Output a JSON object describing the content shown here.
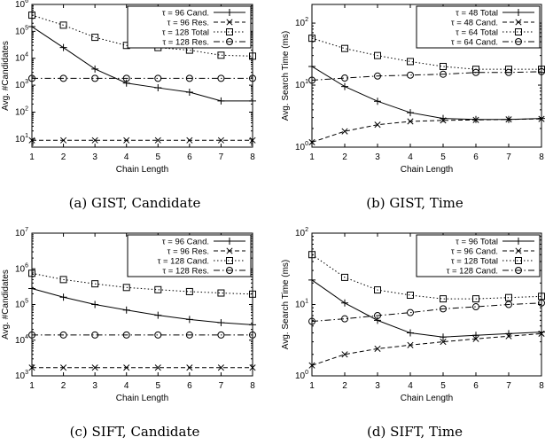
{
  "captions": [
    "(a) GIST, Candidate",
    "(b) GIST, Time",
    "(c) SIFT, Candidate",
    "(d) SIFT, Time"
  ],
  "chart_data": [
    {
      "type": "line",
      "xlabel": "Chain Length",
      "ylabel": "Avg. #Candidates",
      "yscale": "log",
      "ylim": [
        5,
        1000000
      ],
      "xlim": [
        1,
        8
      ],
      "x_ticks": [
        1,
        2,
        3,
        4,
        5,
        6,
        7,
        8
      ],
      "y_ticks": [
        10,
        100,
        1000,
        10000,
        100000,
        1000000
      ],
      "y_tick_labels": [
        "10^1",
        "10^2",
        "10^3",
        "10^4",
        "10^5",
        "10^6"
      ],
      "legend_position": "top-right",
      "x": [
        1,
        2,
        3,
        4,
        5,
        6,
        7,
        8
      ],
      "series": [
        {
          "name": "τ = 96 Cand.",
          "values": [
            150000,
            25000,
            4000,
            1200,
            800,
            550,
            260,
            260
          ],
          "marker": "plus",
          "dash": "solid"
        },
        {
          "name": "τ = 96 Res.",
          "values": [
            9,
            9,
            9,
            9,
            9,
            9,
            9,
            9
          ],
          "marker": "cross",
          "dash": "dashed"
        },
        {
          "name": "τ = 128 Total",
          "values": [
            400000,
            170000,
            60000,
            30000,
            25000,
            20000,
            13000,
            12000
          ],
          "marker": "square",
          "dash": "dotted"
        },
        {
          "name": "τ = 128 Res.",
          "values": [
            1800,
            1800,
            1800,
            1800,
            1800,
            1800,
            1800,
            1800
          ],
          "marker": "circle",
          "dash": "dashdot"
        }
      ]
    },
    {
      "type": "line",
      "xlabel": "Chain Length",
      "ylabel": "Avg. Search Time (ms)",
      "yscale": "log",
      "ylim": [
        1,
        200
      ],
      "xlim": [
        1,
        8
      ],
      "x_ticks": [
        1,
        2,
        3,
        4,
        5,
        6,
        7,
        8
      ],
      "y_ticks": [
        1,
        10,
        100
      ],
      "y_tick_labels": [
        "10^0",
        "10^1",
        "10^2"
      ],
      "legend_position": "top-right",
      "x": [
        1,
        2,
        3,
        4,
        5,
        6,
        7,
        8
      ],
      "series": [
        {
          "name": "τ = 48 Total",
          "values": [
            20,
            9.5,
            5.5,
            3.6,
            2.9,
            2.8,
            2.8,
            2.9
          ],
          "marker": "plus",
          "dash": "solid"
        },
        {
          "name": "τ = 48 Cand.",
          "values": [
            1.2,
            1.8,
            2.3,
            2.6,
            2.7,
            2.75,
            2.8,
            2.85
          ],
          "marker": "cross",
          "dash": "dashed"
        },
        {
          "name": "τ = 64 Total",
          "values": [
            57,
            39,
            30,
            24,
            20,
            18,
            18,
            18
          ],
          "marker": "square",
          "dash": "dotted"
        },
        {
          "name": "τ = 64 Cand.",
          "values": [
            12,
            13,
            14,
            14.5,
            15,
            16,
            16,
            16.5
          ],
          "marker": "circle",
          "dash": "dashdot"
        }
      ]
    },
    {
      "type": "line",
      "xlabel": "Chain Length",
      "ylabel": "Avg. #Candidates",
      "yscale": "log",
      "ylim": [
        1000,
        10000000
      ],
      "xlim": [
        1,
        8
      ],
      "x_ticks": [
        1,
        2,
        3,
        4,
        5,
        6,
        7,
        8
      ],
      "y_ticks": [
        1000,
        10000,
        100000,
        1000000,
        10000000
      ],
      "y_tick_labels": [
        "10^3",
        "10^4",
        "10^5",
        "10^6",
        "10^7"
      ],
      "legend_position": "top-right",
      "x": [
        1,
        2,
        3,
        4,
        5,
        6,
        7,
        8
      ],
      "series": [
        {
          "name": "τ = 96 Cand.",
          "values": [
            280000,
            160000,
            100000,
            70000,
            50000,
            38000,
            31000,
            27000
          ],
          "marker": "plus",
          "dash": "solid"
        },
        {
          "name": "τ = 96 Res.",
          "values": [
            1700,
            1700,
            1700,
            1700,
            1700,
            1700,
            1700,
            1700
          ],
          "marker": "cross",
          "dash": "dashed"
        },
        {
          "name": "τ = 128 Cand.",
          "values": [
            750000,
            500000,
            380000,
            300000,
            260000,
            230000,
            210000,
            195000
          ],
          "marker": "square",
          "dash": "dotted"
        },
        {
          "name": "τ = 128 Res.",
          "values": [
            14000,
            14000,
            14000,
            14000,
            14000,
            14000,
            14000,
            14000
          ],
          "marker": "circle",
          "dash": "dashdot"
        }
      ]
    },
    {
      "type": "line",
      "xlabel": "Chain Length",
      "ylabel": "Avg. Search Time (ms)",
      "yscale": "log",
      "ylim": [
        1,
        100
      ],
      "xlim": [
        1,
        8
      ],
      "x_ticks": [
        1,
        2,
        3,
        4,
        5,
        6,
        7,
        8
      ],
      "y_ticks": [
        1,
        10,
        100
      ],
      "y_tick_labels": [
        "10^0",
        "10^1",
        "10^2"
      ],
      "legend_position": "top-right",
      "x": [
        1,
        2,
        3,
        4,
        5,
        6,
        7,
        8
      ],
      "series": [
        {
          "name": "τ = 96 Total",
          "values": [
            22,
            10.5,
            6,
            4,
            3.5,
            3.7,
            3.9,
            4.1
          ],
          "marker": "plus",
          "dash": "solid"
        },
        {
          "name": "τ = 96 Cand.",
          "values": [
            1.4,
            2,
            2.4,
            2.7,
            3,
            3.3,
            3.6,
            3.9
          ],
          "marker": "cross",
          "dash": "dashed"
        },
        {
          "name": "τ = 128 Total",
          "values": [
            50,
            24,
            16,
            13.5,
            12,
            12,
            12.5,
            13
          ],
          "marker": "square",
          "dash": "dotted"
        },
        {
          "name": "τ = 128 Cand.",
          "values": [
            5.8,
            6.3,
            7,
            7.7,
            8.7,
            9.3,
            10,
            10.5
          ],
          "marker": "circle",
          "dash": "dashdot"
        }
      ]
    }
  ]
}
